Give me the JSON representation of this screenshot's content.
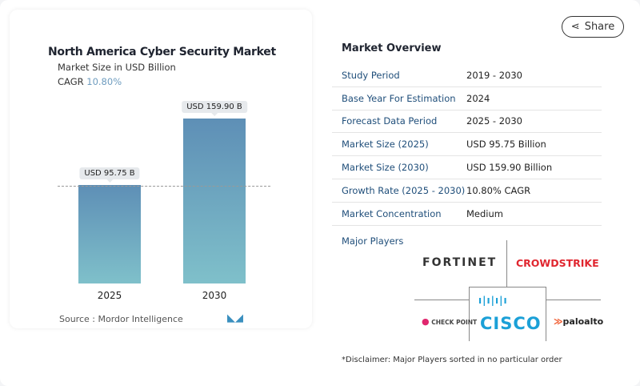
{
  "chart_card": {
    "title": "North America Cyber Security Market",
    "subtitle": "Market Size in USD Billion",
    "cagr_label": "CAGR",
    "cagr_value": "10.80%",
    "source": "Source :  Mordor Intelligence",
    "logo": "MN"
  },
  "chart_data": {
    "type": "bar",
    "title": "North America Cyber Security Market",
    "ylabel": "Market Size in USD Billion",
    "categories": [
      "2025",
      "2030"
    ],
    "values": [
      95.75,
      159.9
    ],
    "data_labels": [
      "USD 95.75 B",
      "USD 159.90 B"
    ],
    "ylim": [
      0,
      175
    ],
    "grid": false,
    "bar_colors": [
      "#5e8fb6",
      "#7fc0ca"
    ]
  },
  "share": {
    "label": "Share",
    "icon": "share-icon"
  },
  "overview": {
    "title": "Market Overview",
    "rows": [
      {
        "key": "Study Period",
        "value": "2019 - 2030"
      },
      {
        "key": "Base Year For Estimation",
        "value": "2024"
      },
      {
        "key": "Forecast Data Period",
        "value": "2025 - 2030"
      },
      {
        "key": "Market Size (2025)",
        "value": "USD 95.75 Billion"
      },
      {
        "key": "Market Size (2030)",
        "value": "USD 159.90 Billion"
      },
      {
        "key": "Growth Rate (2025 - 2030)",
        "value": "10.80% CAGR"
      },
      {
        "key": "Market Concentration",
        "value": "Medium"
      }
    ]
  },
  "major_players": {
    "title": "Major Players",
    "players": [
      "FORTINET",
      "CROWDSTRIKE",
      "CHECK POINT",
      "CISCO",
      "paloalto"
    ]
  },
  "disclaimer": "*Disclaimer: Major Players sorted in no particular order"
}
